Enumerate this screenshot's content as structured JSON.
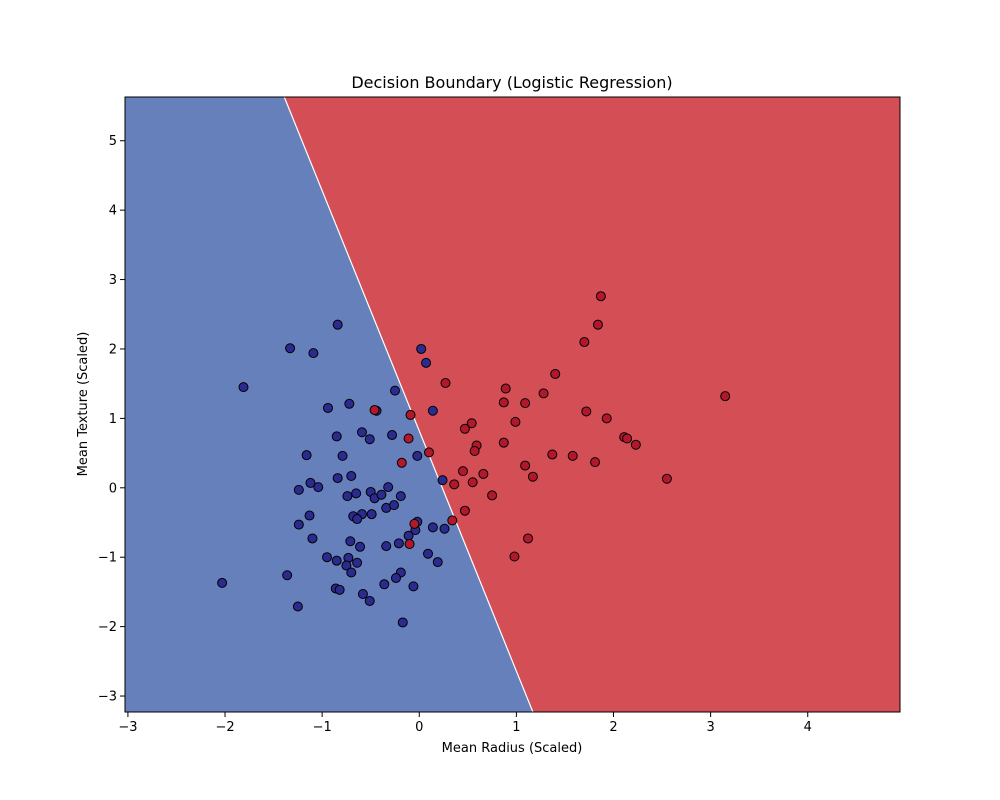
{
  "chart_data": {
    "type": "scatter",
    "title": "Decision Boundary (Logistic Regression)",
    "xlabel": "Mean Radius (Scaled)",
    "ylabel": "Mean Texture (Scaled)",
    "xlim": [
      -3.03,
      4.95
    ],
    "ylim": [
      -3.23,
      5.63
    ],
    "x_ticks": [
      -3,
      -2,
      -1,
      0,
      1,
      2,
      3,
      4
    ],
    "y_ticks": [
      -3,
      -2,
      -1,
      0,
      1,
      2,
      3,
      4,
      5
    ],
    "grid": false,
    "decision_boundary": {
      "points": [
        [
          -1.39,
          5.63
        ],
        [
          1.17,
          -3.23
        ]
      ],
      "region_left_color": "#6580bb",
      "region_right_color": "#d44f55",
      "region_left_class": 0,
      "region_right_class": 1
    },
    "series": [
      {
        "class": 0,
        "color": "#2b2b8f",
        "points": [
          [
            -0.84,
            2.35
          ],
          [
            -1.33,
            2.01
          ],
          [
            -1.09,
            1.94
          ],
          [
            -1.81,
            1.45
          ],
          [
            -0.94,
            1.15
          ],
          [
            -0.72,
            1.21
          ],
          [
            -0.44,
            1.11
          ],
          [
            -0.25,
            1.4
          ],
          [
            0.02,
            2.0
          ],
          [
            0.07,
            1.8
          ],
          [
            0.14,
            1.11
          ],
          [
            -0.85,
            0.74
          ],
          [
            -0.59,
            0.8
          ],
          [
            -0.51,
            0.7
          ],
          [
            -0.28,
            0.76
          ],
          [
            -1.16,
            0.47
          ],
          [
            -0.79,
            0.46
          ],
          [
            -0.02,
            0.46
          ],
          [
            -1.12,
            0.07
          ],
          [
            -0.7,
            0.17
          ],
          [
            -0.84,
            0.14
          ],
          [
            -1.24,
            -0.03
          ],
          [
            -1.04,
            0.01
          ],
          [
            -0.74,
            -0.12
          ],
          [
            -0.65,
            -0.08
          ],
          [
            -0.5,
            -0.06
          ],
          [
            -0.46,
            -0.15
          ],
          [
            -0.39,
            -0.1
          ],
          [
            -0.32,
            0.01
          ],
          [
            -0.19,
            -0.12
          ],
          [
            0.24,
            0.11
          ],
          [
            -0.59,
            -0.38
          ],
          [
            -0.49,
            -0.38
          ],
          [
            -0.34,
            -0.29
          ],
          [
            -0.26,
            -0.25
          ],
          [
            -1.13,
            -0.4
          ],
          [
            -0.68,
            -0.41
          ],
          [
            -0.64,
            -0.45
          ],
          [
            -1.24,
            -0.53
          ],
          [
            -0.02,
            -0.49
          ],
          [
            -0.04,
            -0.61
          ],
          [
            0.14,
            -0.57
          ],
          [
            0.26,
            -0.59
          ],
          [
            -1.1,
            -0.73
          ],
          [
            -0.71,
            -0.77
          ],
          [
            -0.11,
            -0.69
          ],
          [
            -0.21,
            -0.8
          ],
          [
            -0.34,
            -0.84
          ],
          [
            -0.61,
            -0.85
          ],
          [
            -0.95,
            -1.0
          ],
          [
            -0.85,
            -1.05
          ],
          [
            -0.73,
            -1.01
          ],
          [
            -0.75,
            -1.12
          ],
          [
            -0.64,
            -1.08
          ],
          [
            0.09,
            -0.95
          ],
          [
            0.19,
            -1.07
          ],
          [
            -0.7,
            -1.22
          ],
          [
            -0.19,
            -1.22
          ],
          [
            -0.24,
            -1.3
          ],
          [
            -0.36,
            -1.39
          ],
          [
            -0.06,
            -1.42
          ],
          [
            -1.36,
            -1.26
          ],
          [
            -0.86,
            -1.45
          ],
          [
            -0.82,
            -1.47
          ],
          [
            -0.58,
            -1.53
          ],
          [
            -0.51,
            -1.63
          ],
          [
            -1.25,
            -1.71
          ],
          [
            -2.03,
            -1.37
          ],
          [
            -0.17,
            -1.94
          ]
        ]
      },
      {
        "class": 1,
        "color": "#b2182b",
        "points": [
          [
            1.87,
            2.76
          ],
          [
            1.84,
            2.35
          ],
          [
            1.7,
            2.1
          ],
          [
            1.4,
            1.64
          ],
          [
            3.15,
            1.32
          ],
          [
            0.27,
            1.51
          ],
          [
            0.89,
            1.43
          ],
          [
            1.28,
            1.36
          ],
          [
            0.87,
            1.23
          ],
          [
            1.09,
            1.22
          ],
          [
            1.72,
            1.1
          ],
          [
            1.93,
            1.0
          ],
          [
            2.11,
            0.73
          ],
          [
            2.14,
            0.71
          ],
          [
            2.23,
            0.62
          ],
          [
            0.54,
            0.93
          ],
          [
            0.47,
            0.85
          ],
          [
            0.99,
            0.95
          ],
          [
            -0.09,
            1.05
          ],
          [
            -0.46,
            1.12
          ],
          [
            -0.11,
            0.71
          ],
          [
            0.59,
            0.61
          ],
          [
            0.57,
            0.53
          ],
          [
            0.87,
            0.65
          ],
          [
            0.1,
            0.51
          ],
          [
            1.37,
            0.48
          ],
          [
            1.58,
            0.46
          ],
          [
            1.81,
            0.37
          ],
          [
            -0.18,
            0.36
          ],
          [
            1.09,
            0.32
          ],
          [
            0.45,
            0.24
          ],
          [
            0.66,
            0.2
          ],
          [
            1.17,
            0.16
          ],
          [
            2.55,
            0.13
          ],
          [
            0.36,
            0.05
          ],
          [
            0.55,
            0.08
          ],
          [
            0.75,
            -0.11
          ],
          [
            0.47,
            -0.33
          ],
          [
            0.34,
            -0.47
          ],
          [
            -0.05,
            -0.52
          ],
          [
            -0.1,
            -0.81
          ],
          [
            1.12,
            -0.73
          ],
          [
            0.98,
            -0.99
          ]
        ]
      }
    ]
  }
}
